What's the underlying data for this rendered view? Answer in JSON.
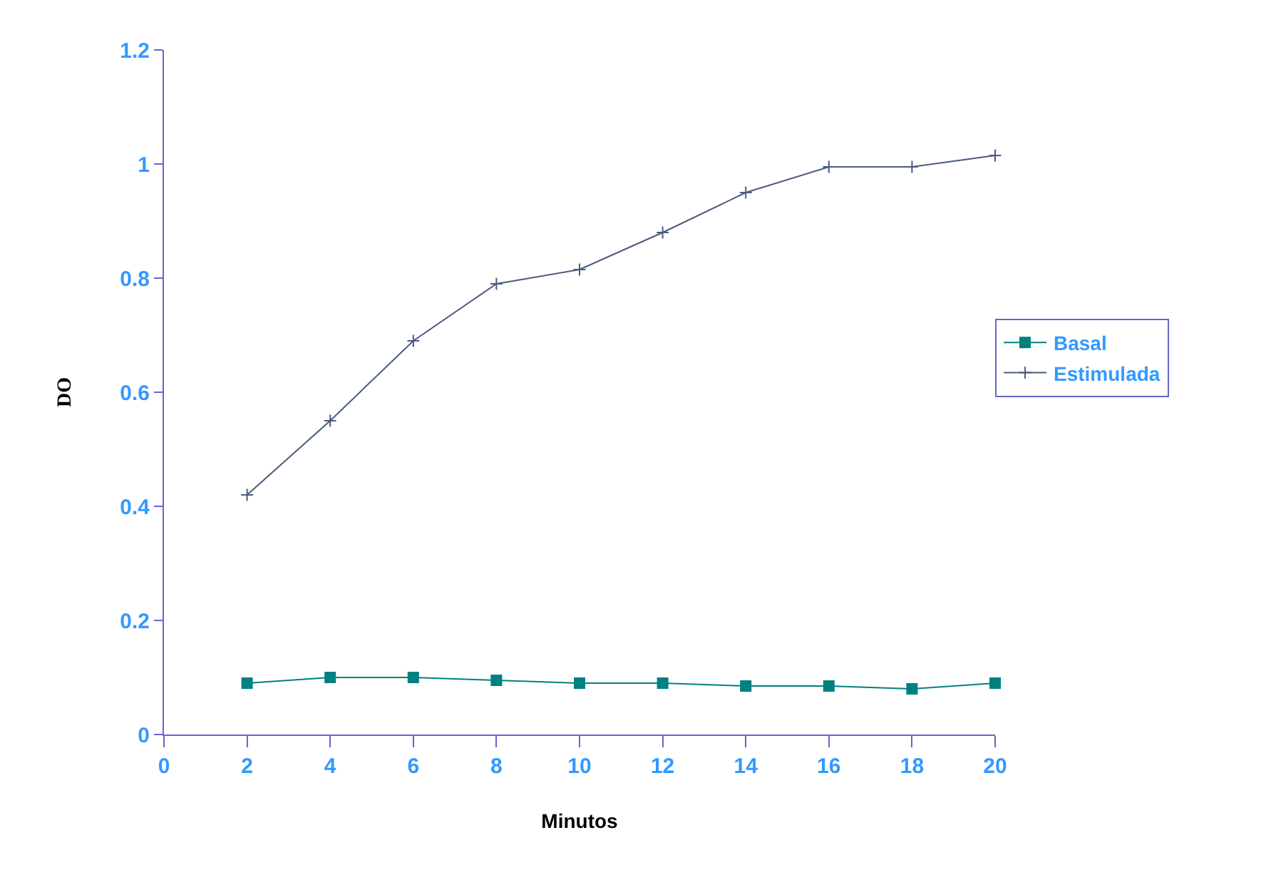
{
  "chart_data": {
    "type": "line",
    "xlabel": "Minutos",
    "ylabel": "DO",
    "x": [
      2,
      4,
      6,
      8,
      10,
      12,
      14,
      16,
      18,
      20
    ],
    "series": [
      {
        "name": "Basal",
        "color": "#008080",
        "marker": "square",
        "values": [
          0.09,
          0.1,
          0.1,
          0.095,
          0.09,
          0.09,
          0.085,
          0.085,
          0.08,
          0.09
        ]
      },
      {
        "name": "Estimulada",
        "color": "#4a5a80",
        "marker": "cross",
        "values": [
          0.42,
          0.55,
          0.69,
          0.79,
          0.815,
          0.88,
          0.95,
          0.995,
          0.995,
          1.015
        ]
      }
    ],
    "xlim": [
      0,
      20
    ],
    "xticks": [
      0,
      2,
      4,
      6,
      8,
      10,
      12,
      14,
      16,
      18,
      20
    ],
    "ylim": [
      0,
      1.2
    ],
    "yticks": [
      0,
      0.2,
      0.4,
      0.6,
      0.8,
      1,
      1.2
    ],
    "legend": "right",
    "line_style": "solid"
  }
}
